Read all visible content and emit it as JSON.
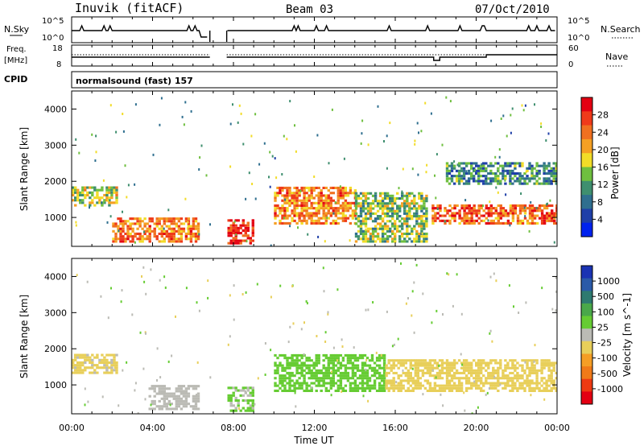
{
  "header": {
    "station": "Inuvik (fitACF)",
    "beam": "Beam 03",
    "date": "07/Oct/2010"
  },
  "aux_panels": {
    "nsky_label": "N.Sky",
    "nsky_ticks": [
      "10^5",
      "10^0"
    ],
    "nsearch_label": "N.Search",
    "nsearch_ticks": [
      "10^5",
      "10^0"
    ],
    "freq_label": "Freq.",
    "freq_unit": "[MHz]",
    "freq_ticks": [
      "18",
      "8"
    ],
    "nave_label": "Nave",
    "nave_ticks": [
      "60",
      "0"
    ],
    "cpid_label": "CPID",
    "cpid_value": "normalsound (fast) 157"
  },
  "colors": {
    "power": [
      "#0022ee",
      "#1f3fa8",
      "#2f6f8f",
      "#3f8f6f",
      "#6fbf3f",
      "#f2dc28",
      "#f5a023",
      "#f07020",
      "#ef3a1a",
      "#e30012"
    ],
    "velocity": [
      "#1a33b3",
      "#2a5aa8",
      "#2e7a70",
      "#4aa84a",
      "#66cc33",
      "#bbbbb5",
      "#e8cf5a",
      "#f59e25",
      "#f07a18",
      "#ee3a12",
      "#e30012"
    ]
  },
  "chart_data": [
    {
      "type": "heatmap",
      "name": "power",
      "xlabel": "",
      "ylabel": "Slant Range [km]",
      "xlim": [
        "00:00",
        "24:00"
      ],
      "ylim": [
        200,
        4500
      ],
      "yticks": [
        "1000",
        "2000",
        "3000",
        "4000"
      ],
      "colorbar": {
        "label": "Power [dB]",
        "ticks": [
          "28",
          "24",
          "20",
          "16",
          "12",
          "8",
          "4"
        ],
        "range": [
          0,
          30
        ]
      },
      "data_gap": [
        "06:50",
        "07:40"
      ],
      "echo_bands": [
        {
          "t": [
            0.0,
            2.2
          ],
          "range_km": [
            1300,
            1800
          ],
          "power_db": 14
        },
        {
          "t": [
            2.0,
            6.3
          ],
          "range_km": [
            300,
            1000
          ],
          "power_db": 20
        },
        {
          "t": [
            7.7,
            9.0
          ],
          "range_km": [
            250,
            900
          ],
          "power_db": 26
        },
        {
          "t": [
            10.0,
            14.0
          ],
          "range_km": [
            800,
            1800
          ],
          "power_db": 20
        },
        {
          "t": [
            14.0,
            17.5
          ],
          "range_km": [
            300,
            1700
          ],
          "power_db": 12
        },
        {
          "t": [
            17.8,
            24.0
          ],
          "range_km": [
            800,
            1300
          ],
          "power_db": 22
        },
        {
          "t": [
            18.5,
            24.0
          ],
          "range_km": [
            1900,
            2500
          ],
          "power_db": 8
        }
      ]
    },
    {
      "type": "heatmap",
      "name": "velocity",
      "xlabel": "Time UT",
      "ylabel": "Slant Range [km]",
      "xlim": [
        "00:00",
        "24:00"
      ],
      "ylim": [
        200,
        4500
      ],
      "xticks": [
        "00:00",
        "04:00",
        "08:00",
        "12:00",
        "16:00",
        "20:00",
        "00:00"
      ],
      "yticks": [
        "1000",
        "2000",
        "3000",
        "4000"
      ],
      "colorbar": {
        "label": "Velocity [m s^-1]",
        "ticks": [
          "1000",
          "500",
          "100",
          "25",
          "-25",
          "-100",
          "-500",
          "-1000"
        ],
        "range": [
          -1000,
          1000
        ]
      },
      "data_gap": [
        "06:50",
        "07:40"
      ],
      "echo_bands": [
        {
          "t": [
            0.0,
            2.2
          ],
          "range_km": [
            1300,
            1800
          ],
          "velocity": -150
        },
        {
          "t": [
            3.8,
            6.3
          ],
          "range_km": [
            300,
            1000
          ],
          "velocity": 0
        },
        {
          "t": [
            7.7,
            9.0
          ],
          "range_km": [
            250,
            900
          ],
          "velocity": 150
        },
        {
          "t": [
            10.0,
            15.5
          ],
          "range_km": [
            800,
            1800
          ],
          "velocity": 200
        },
        {
          "t": [
            15.5,
            24.0
          ],
          "range_km": [
            800,
            1700
          ],
          "velocity": -200
        }
      ]
    }
  ]
}
